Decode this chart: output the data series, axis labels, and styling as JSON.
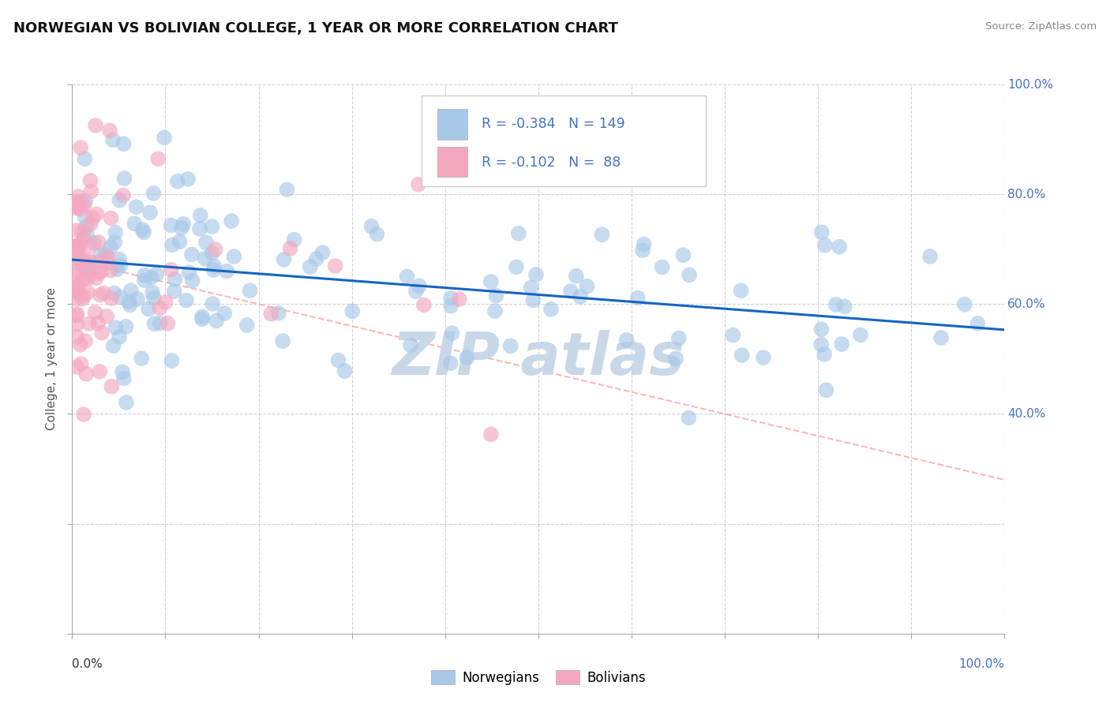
{
  "title": "NORWEGIAN VS BOLIVIAN COLLEGE, 1 YEAR OR MORE CORRELATION CHART",
  "source": "Source: ZipAtlas.com",
  "ylabel": "College, 1 year or more",
  "ytick_labels": [
    "",
    "40.0%",
    "",
    "60.0%",
    "",
    "80.0%",
    "",
    "100.0%"
  ],
  "xtick_label_left": "0.0%",
  "xtick_label_right": "100.0%",
  "legend_nor_label": "Norwegians",
  "legend_bol_label": "Bolivians",
  "norwegian_R": "-0.384",
  "norwegian_N": "149",
  "bolivian_R": "-0.102",
  "bolivian_N": "88",
  "norwegian_dot_color": "#a8c8e8",
  "bolivian_dot_color": "#f4a8c0",
  "norwegian_line_color": "#1565C0",
  "bolivian_line_color": "#ffaaaa",
  "legend_nor_patch": "#a8c8e8",
  "legend_bol_patch": "#f4a8c0",
  "axis_label_color": "#4472C4",
  "text_color_dark": "#333333",
  "grid_color": "#cccccc",
  "watermark_color": "#c8d8e8",
  "background": "#ffffff"
}
